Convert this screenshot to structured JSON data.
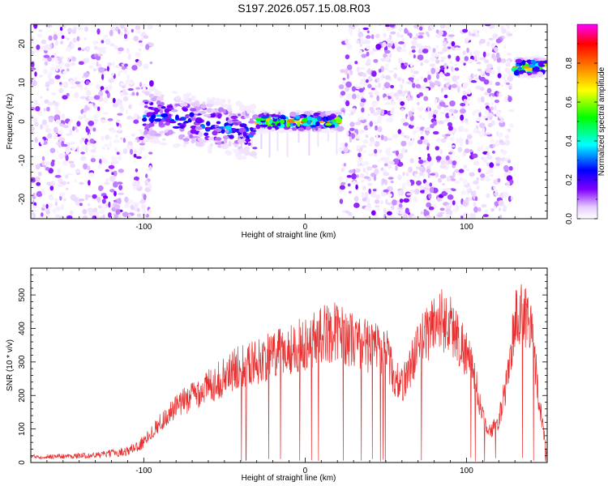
{
  "figure": {
    "title": "S197.2026.057.15.08.R03"
  },
  "colors": {
    "snr_line": "#e83030",
    "frame": "#000000",
    "background": "#ffffff"
  },
  "chart_data": [
    {
      "type": "heatmap",
      "title": "",
      "xlabel": "Height of straight line (km)",
      "ylabel": "Frequency (Hz)",
      "xlim": [
        -170,
        150
      ],
      "ylim": [
        -25,
        25
      ],
      "xticks": [
        -100,
        0,
        100
      ],
      "yticks": [
        -20,
        -10,
        0,
        10,
        20
      ],
      "colorbar": {
        "label": "Normalized spectral amplitude",
        "range": [
          0,
          1
        ],
        "ticks": [
          "0.0",
          "0.2",
          "0.4",
          "0.6",
          "0.8"
        ],
        "colormap": [
          "#ffffff",
          "#e6ccff",
          "#8000ff",
          "#0000ff",
          "#00ffff",
          "#00ff00",
          "#ffff00",
          "#ff8000",
          "#ff0000",
          "#ff00ff"
        ]
      },
      "regions": [
        {
          "x": [
            -170,
            -100
          ],
          "description": "scattered noise"
        },
        {
          "x": [
            -100,
            -30
          ],
          "ridge_freq_hz": [
            -3,
            2
          ],
          "peak_amplitude": 0.45
        },
        {
          "x": [
            -30,
            22
          ],
          "ridge_freq_hz": 0,
          "peak_amplitude": 0.9
        },
        {
          "x": [
            22,
            128
          ],
          "description": "scattered noise"
        },
        {
          "x": [
            130,
            148
          ],
          "ridge_freq_hz": 14,
          "peak_amplitude": 0.85
        }
      ]
    },
    {
      "type": "line",
      "title": "",
      "xlabel": "Height of straight line (km)",
      "ylabel": "SNR (10 * v/v)",
      "xlim": [
        -170,
        150
      ],
      "ylim": [
        0,
        580
      ],
      "xticks": [
        -100,
        0,
        100
      ],
      "yticks": [
        0,
        100,
        200,
        300,
        400,
        500
      ],
      "series": [
        {
          "name": "SNR",
          "x": [
            -170,
            -150,
            -130,
            -110,
            -100,
            -90,
            -80,
            -70,
            -60,
            -50,
            -45,
            -40,
            -30,
            -20,
            -10,
            0,
            10,
            20,
            30,
            40,
            50,
            55,
            60,
            70,
            80,
            85,
            90,
            100,
            105,
            110,
            115,
            120,
            125,
            130,
            135,
            140,
            145,
            150
          ],
          "values": [
            20,
            22,
            25,
            40,
            70,
            130,
            180,
            220,
            250,
            280,
            300,
            320,
            330,
            350,
            370,
            390,
            420,
            430,
            400,
            380,
            370,
            280,
            250,
            380,
            460,
            470,
            450,
            360,
            280,
            150,
            100,
            140,
            260,
            470,
            490,
            470,
            200,
            20
          ]
        }
      ]
    }
  ]
}
